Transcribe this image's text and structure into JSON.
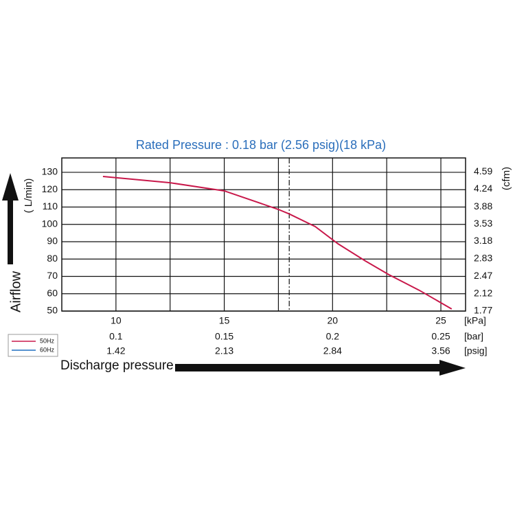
{
  "chart_data": {
    "type": "line",
    "title": "Rated Pressure : 0.18 bar (2.56 psig)(18 kPa)",
    "y_label": "Airflow",
    "y_unit": "( L/min)",
    "y2_unit": "(cfm)",
    "x_label": "Discharge pressure",
    "x_units": [
      "[kPa]",
      "[bar]",
      "[psig]"
    ],
    "xlim": [
      7.5,
      26.14
    ],
    "ylim": [
      50,
      138.3
    ],
    "y2lim": [
      1.766,
      4.873
    ],
    "xticks": [
      10,
      15,
      20,
      25
    ],
    "x_minor_ticks": [
      12.5,
      17.5,
      22.5
    ],
    "bar_ticks": [
      0.1,
      0.15,
      0.2,
      0.25
    ],
    "psig_ticks": [
      1.42,
      2.13,
      2.84,
      3.56
    ],
    "yticks": [
      50,
      60,
      70,
      80,
      90,
      100,
      110,
      120,
      130
    ],
    "y2ticks": [
      1.77,
      2.12,
      2.47,
      2.83,
      3.18,
      3.53,
      3.88,
      4.24,
      4.59
    ],
    "reference_x": 18,
    "grid": true,
    "series": [
      {
        "name": "50Hz",
        "color": "#c8184a",
        "x": [
          9.4,
          12.5,
          15,
          17.5,
          18,
          19.2,
          20.25,
          21.5,
          22.6,
          24,
          25.5
        ],
        "values": [
          127.6,
          124,
          119.3,
          108.6,
          106,
          98.7,
          88.8,
          79,
          71,
          62,
          51.2
        ]
      },
      {
        "name": "60Hz",
        "color": "#1f6fc0",
        "x": [],
        "values": []
      }
    ]
  }
}
